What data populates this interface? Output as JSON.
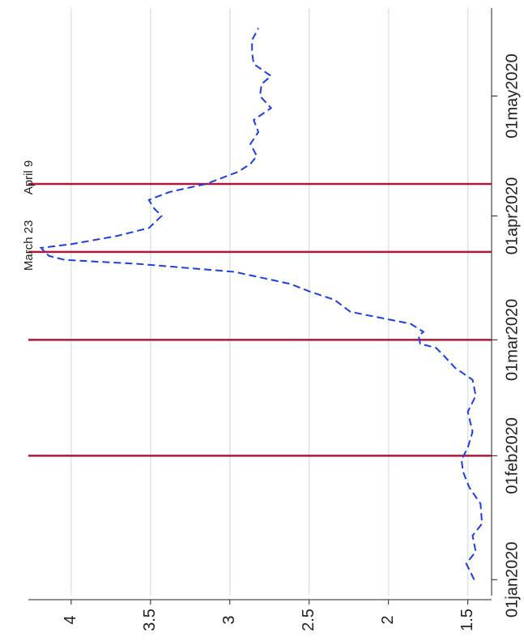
{
  "chart_data": {
    "type": "line",
    "x": [
      "2020-01-01",
      "2020-01-05",
      "2020-01-08",
      "2020-01-12",
      "2020-01-15",
      "2020-01-20",
      "2020-01-24",
      "2020-01-28",
      "2020-01-31",
      "2020-02-03",
      "2020-02-07",
      "2020-02-12",
      "2020-02-16",
      "2020-02-20",
      "2020-02-23",
      "2020-02-26",
      "2020-02-28",
      "2020-02-29",
      "2020-03-02",
      "2020-03-03",
      "2020-03-05",
      "2020-03-08",
      "2020-03-11",
      "2020-03-13",
      "2020-03-15",
      "2020-03-18",
      "2020-03-20",
      "2020-03-21",
      "2020-03-22",
      "2020-03-24",
      "2020-03-25",
      "2020-03-27",
      "2020-03-29",
      "2020-04-01",
      "2020-04-03",
      "2020-04-05",
      "2020-04-07",
      "2020-04-09",
      "2020-04-12",
      "2020-04-14",
      "2020-04-16",
      "2020-04-19",
      "2020-04-22",
      "2020-04-25",
      "2020-04-28",
      "2020-05-01",
      "2020-05-04",
      "2020-05-06",
      "2020-05-09",
      "2020-05-12",
      "2020-05-15",
      "2020-05-18"
    ],
    "series": [
      {
        "color": "#1a3ee8",
        "values": [
          1.46,
          1.51,
          1.45,
          1.47,
          1.41,
          1.42,
          1.49,
          1.53,
          1.54,
          1.5,
          1.47,
          1.5,
          1.45,
          1.47,
          1.58,
          1.65,
          1.7,
          1.8,
          1.81,
          1.78,
          1.86,
          2.24,
          2.34,
          2.49,
          2.62,
          2.97,
          3.58,
          4.04,
          4.14,
          4.19,
          3.99,
          3.71,
          3.51,
          3.43,
          3.48,
          3.51,
          3.38,
          3.15,
          2.95,
          2.87,
          2.83,
          2.87,
          2.82,
          2.85,
          2.74,
          2.81,
          2.8,
          2.74,
          2.85,
          2.86,
          2.86,
          2.82
        ]
      }
    ],
    "xlim": [
      "2019-12-28",
      "2020-05-23"
    ],
    "xticks": [
      {
        "value": "2020-01-01",
        "label": "01jan2020"
      },
      {
        "value": "2020-02-01",
        "label": "01feb2020"
      },
      {
        "value": "2020-03-01",
        "label": "01mar2020"
      },
      {
        "value": "2020-04-01",
        "label": "01apr2020"
      },
      {
        "value": "2020-05-01",
        "label": "01may2020"
      }
    ],
    "ylim": [
      1.35,
      4.27
    ],
    "yticks": [
      1.5,
      2,
      2.5,
      3,
      3.5,
      4
    ],
    "grid": true,
    "vlines": {
      "color": "#b0173a",
      "x": [
        "2020-02-01",
        "2020-03-01",
        "2020-03-23",
        "2020-04-09"
      ]
    },
    "annotations": [
      {
        "text": "March 23",
        "x": "2020-03-23"
      },
      {
        "text": "April 9",
        "x": "2020-04-09"
      }
    ]
  }
}
